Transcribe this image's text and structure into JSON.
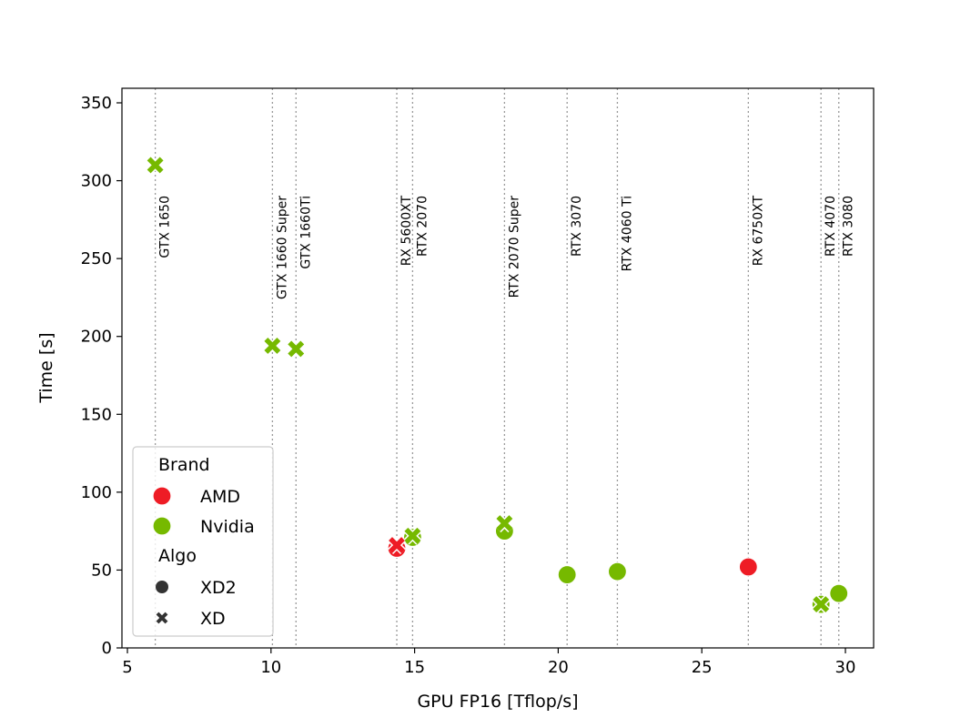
{
  "chart_data": {
    "type": "scatter",
    "title": "",
    "xlabel": "GPU FP16 [Tflop/s]",
    "ylabel": "Time [s]",
    "xlim": [
      5,
      31
    ],
    "ylim": [
      0,
      350
    ],
    "xticks": [
      5,
      10,
      15,
      20,
      25,
      30
    ],
    "yticks": [
      0,
      50,
      100,
      150,
      200,
      250,
      300,
      350
    ],
    "grid": false,
    "legend_position": "bottom-left",
    "legend": {
      "brand_title": "Brand",
      "algo_title": "Algo",
      "brands": [
        {
          "name": "AMD",
          "color": "#ee1c25"
        },
        {
          "name": "Nvidia",
          "color": "#76b900"
        }
      ],
      "algos": [
        {
          "name": "XD2",
          "marker": "circle"
        },
        {
          "name": "XD",
          "marker": "x"
        }
      ]
    },
    "gpu_lines": [
      {
        "label": "GTX 1650",
        "x": 5.97
      },
      {
        "label": "GTX 1660 Super",
        "x": 10.05
      },
      {
        "label": "GTX 1660Ti",
        "x": 10.87
      },
      {
        "label": "RX 5600XT",
        "x": 14.38
      },
      {
        "label": "RTX 2070",
        "x": 14.93
      },
      {
        "label": "RTX 2070 Super",
        "x": 18.13
      },
      {
        "label": "RTX 3070",
        "x": 20.31
      },
      {
        "label": "RTX 4060 Ti",
        "x": 22.06
      },
      {
        "label": "RX 6750XT",
        "x": 26.62
      },
      {
        "label": "RTX 4070",
        "x": 29.15
      },
      {
        "label": "RTX 3080",
        "x": 29.77
      }
    ],
    "points": [
      {
        "gpu": "GTX 1650",
        "brand": "Nvidia",
        "algo": "XD",
        "x": 5.97,
        "y": 310
      },
      {
        "gpu": "GTX 1660 Super",
        "brand": "Nvidia",
        "algo": "XD",
        "x": 10.05,
        "y": 194
      },
      {
        "gpu": "GTX 1660Ti",
        "brand": "Nvidia",
        "algo": "XD",
        "x": 10.87,
        "y": 192
      },
      {
        "gpu": "RX 5600XT",
        "brand": "AMD",
        "algo": "XD2",
        "x": 14.38,
        "y": 64
      },
      {
        "gpu": "RX 5600XT",
        "brand": "AMD",
        "algo": "XD",
        "x": 14.38,
        "y": 66
      },
      {
        "gpu": "RTX 2070",
        "brand": "Nvidia",
        "algo": "XD2",
        "x": 14.93,
        "y": 71
      },
      {
        "gpu": "RTX 2070",
        "brand": "Nvidia",
        "algo": "XD",
        "x": 14.93,
        "y": 72
      },
      {
        "gpu": "RTX 2070 Super",
        "brand": "Nvidia",
        "algo": "XD2",
        "x": 18.13,
        "y": 75
      },
      {
        "gpu": "RTX 2070 Super",
        "brand": "Nvidia",
        "algo": "XD",
        "x": 18.13,
        "y": 80
      },
      {
        "gpu": "RTX 3070",
        "brand": "Nvidia",
        "algo": "XD2",
        "x": 20.31,
        "y": 47
      },
      {
        "gpu": "RTX 4060 Ti",
        "brand": "Nvidia",
        "algo": "XD2",
        "x": 22.06,
        "y": 49
      },
      {
        "gpu": "RX 6750XT",
        "brand": "AMD",
        "algo": "XD2",
        "x": 26.62,
        "y": 52
      },
      {
        "gpu": "RTX 4070",
        "brand": "Nvidia",
        "algo": "XD2",
        "x": 29.15,
        "y": 28
      },
      {
        "gpu": "RTX 4070",
        "brand": "Nvidia",
        "algo": "XD",
        "x": 29.15,
        "y": 28
      },
      {
        "gpu": "RTX 3080",
        "brand": "Nvidia",
        "algo": "XD2",
        "x": 29.77,
        "y": 35
      }
    ]
  }
}
